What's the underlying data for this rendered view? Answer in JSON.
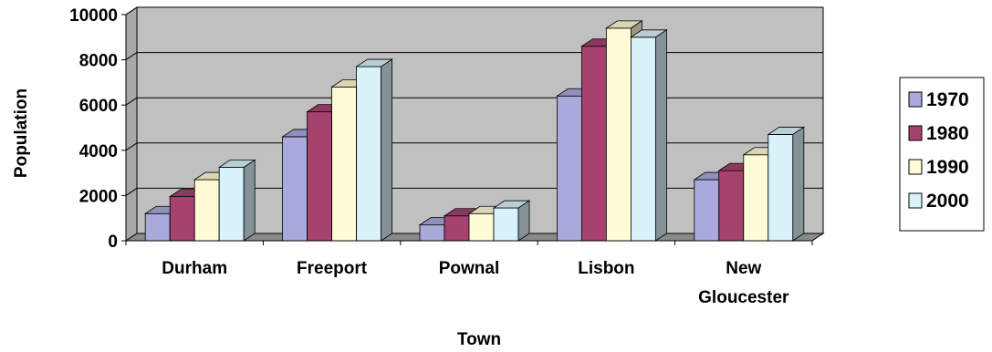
{
  "chart_data": {
    "type": "bar",
    "style": "3d-clustered-column",
    "title": "",
    "xlabel": "Town",
    "ylabel": "Population",
    "categories": [
      [
        "Durham"
      ],
      [
        "Freeport"
      ],
      [
        "Pownal"
      ],
      [
        "Lisbon"
      ],
      [
        "New",
        "Gloucester"
      ]
    ],
    "ylim": [
      0,
      10000
    ],
    "yticks": [
      "0",
      "2000",
      "4000",
      "6000",
      "8000",
      "10000"
    ],
    "grid": true,
    "legend_position": "right",
    "series": [
      {
        "name": "1970",
        "color": "#a9a9dc",
        "values": [
          1200,
          4600,
          700,
          6400,
          2700
        ]
      },
      {
        "name": "1980",
        "color": "#a6426e",
        "values": [
          1950,
          5700,
          1100,
          8600,
          3100
        ]
      },
      {
        "name": "1990",
        "color": "#fffbd6",
        "values": [
          2700,
          6800,
          1200,
          9400,
          3800
        ]
      },
      {
        "name": "2000",
        "color": "#d9f3fb",
        "values": [
          3250,
          7700,
          1450,
          9000,
          4700
        ]
      }
    ],
    "colors": {
      "wall": "#c0c0c0",
      "floor": "#8a8a8a",
      "grid": "#000000"
    }
  }
}
